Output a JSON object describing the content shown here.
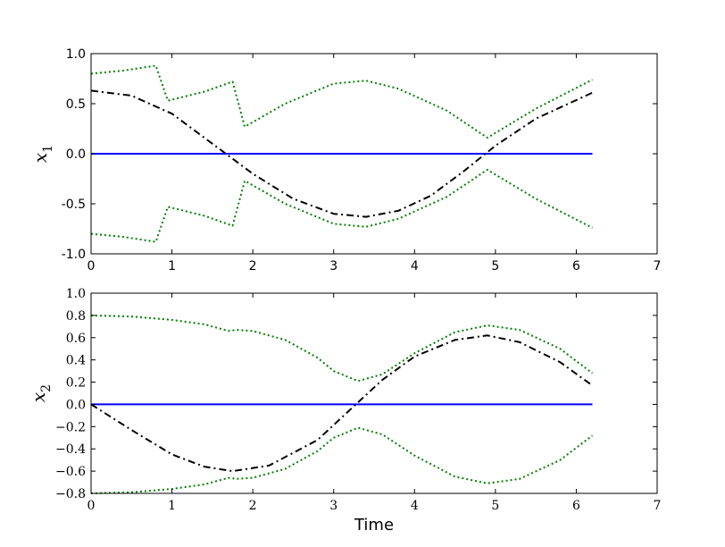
{
  "chart_data": [
    {
      "type": "line",
      "ylabel_symbol": "x",
      "ylabel_subscript": "1",
      "xlabel": "",
      "xlim": [
        0,
        7
      ],
      "ylim": [
        -1.0,
        1.0
      ],
      "xticks": [
        "0",
        "1",
        "2",
        "3",
        "4",
        "5",
        "6",
        "7"
      ],
      "yticks": [
        "-1.0",
        "-0.5",
        "0.0",
        "0.5",
        "1.0"
      ],
      "series": [
        {
          "style": "solid",
          "color": "#0000ff",
          "x": [
            0.0,
            6.2
          ],
          "y": [
            0.0,
            0.0
          ]
        },
        {
          "style": "dashdot",
          "color": "#000000",
          "x": [
            0.0,
            0.5,
            1.0,
            1.5,
            2.0,
            2.5,
            3.0,
            3.4,
            3.8,
            4.2,
            4.6,
            5.0,
            5.5,
            6.2
          ],
          "y": [
            0.63,
            0.58,
            0.4,
            0.1,
            -0.2,
            -0.45,
            -0.6,
            -0.63,
            -0.57,
            -0.42,
            -0.18,
            0.08,
            0.35,
            0.61
          ]
        },
        {
          "style": "dotted",
          "color": "#008000",
          "x": [
            0.0,
            0.4,
            0.8,
            0.95,
            1.4,
            1.75,
            1.9,
            2.4,
            3.0,
            3.4,
            3.8,
            4.4,
            4.9,
            5.5,
            6.2
          ],
          "y": [
            0.8,
            0.83,
            0.88,
            0.53,
            0.62,
            0.72,
            0.27,
            0.5,
            0.7,
            0.73,
            0.65,
            0.43,
            0.16,
            0.45,
            0.74
          ]
        },
        {
          "style": "dotted",
          "color": "#008000",
          "x": [
            0.0,
            0.4,
            0.8,
            0.95,
            1.4,
            1.75,
            1.9,
            2.4,
            3.0,
            3.4,
            3.8,
            4.4,
            4.9,
            5.5,
            6.2
          ],
          "y": [
            -0.8,
            -0.83,
            -0.88,
            -0.53,
            -0.62,
            -0.72,
            -0.27,
            -0.5,
            -0.7,
            -0.73,
            -0.65,
            -0.43,
            -0.16,
            -0.45,
            -0.74
          ]
        }
      ]
    },
    {
      "type": "line",
      "ylabel_symbol": "x",
      "ylabel_subscript": "2",
      "xlabel": "Time",
      "xlim": [
        0,
        7
      ],
      "ylim": [
        -0.8,
        1.0
      ],
      "xticks": [
        "0",
        "1",
        "2",
        "3",
        "4",
        "5",
        "6",
        "7"
      ],
      "yticks": [
        "−0.8",
        "−0.6",
        "−0.4",
        "−0.2",
        "0.0",
        "0.2",
        "0.4",
        "0.6",
        "0.8",
        "1.0"
      ],
      "series": [
        {
          "style": "solid",
          "color": "#0000ff",
          "x": [
            0.0,
            6.2
          ],
          "y": [
            0.0,
            0.0
          ]
        },
        {
          "style": "dashdot",
          "color": "#000000",
          "x": [
            0.0,
            0.5,
            1.0,
            1.4,
            1.75,
            2.2,
            2.8,
            3.2,
            3.6,
            4.0,
            4.5,
            4.9,
            5.3,
            5.8,
            6.2
          ],
          "y": [
            0.0,
            -0.23,
            -0.45,
            -0.56,
            -0.6,
            -0.55,
            -0.32,
            -0.05,
            0.22,
            0.43,
            0.58,
            0.62,
            0.56,
            0.38,
            0.17
          ]
        },
        {
          "style": "dotted",
          "color": "#008000",
          "x": [
            0.0,
            0.5,
            1.0,
            1.4,
            1.7,
            1.8,
            2.0,
            2.4,
            2.8,
            3.0,
            3.3,
            3.6,
            4.0,
            4.5,
            4.9,
            5.3,
            5.8,
            6.2
          ],
          "y": [
            0.8,
            0.79,
            0.76,
            0.72,
            0.66,
            0.67,
            0.66,
            0.58,
            0.42,
            0.3,
            0.21,
            0.27,
            0.46,
            0.65,
            0.71,
            0.67,
            0.5,
            0.28
          ]
        },
        {
          "style": "dotted",
          "color": "#008000",
          "x": [
            0.0,
            0.5,
            1.0,
            1.4,
            1.7,
            1.8,
            2.0,
            2.4,
            2.8,
            3.0,
            3.3,
            3.6,
            4.0,
            4.5,
            4.9,
            5.3,
            5.8,
            6.2
          ],
          "y": [
            -0.8,
            -0.79,
            -0.76,
            -0.72,
            -0.66,
            -0.67,
            -0.66,
            -0.58,
            -0.42,
            -0.3,
            -0.21,
            -0.27,
            -0.46,
            -0.65,
            -0.71,
            -0.67,
            -0.5,
            -0.28
          ]
        }
      ]
    }
  ]
}
